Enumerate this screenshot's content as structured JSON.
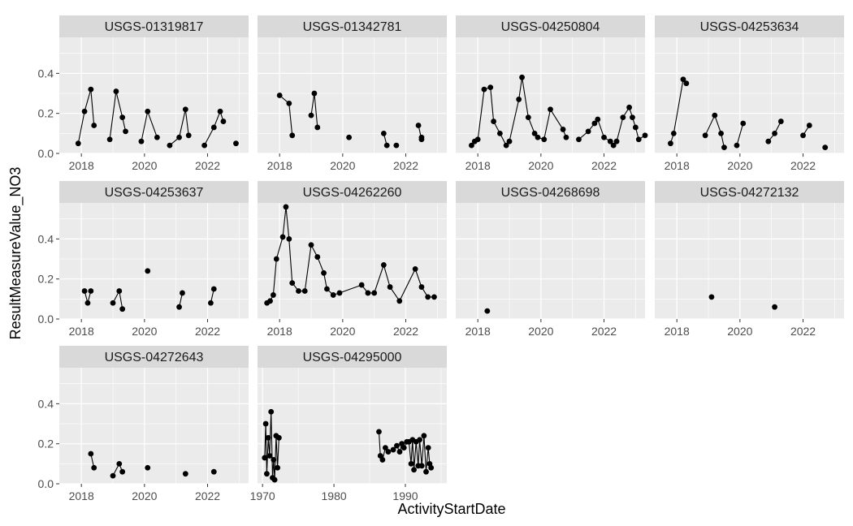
{
  "chart_data": {
    "type": "line",
    "xlabel": "ActivityStartDate",
    "ylabel": "ResultMeasureValue_NO3",
    "ylim": [
      0,
      0.58
    ],
    "yticks": [
      0.0,
      0.2,
      0.4
    ],
    "ytick_labels": [
      "0.0",
      "0.2",
      "0.4"
    ],
    "grid": true,
    "layout": "facet-wrap, 4 columns, fixed y scale",
    "colors": {
      "panel": "#ebebeb",
      "strip": "#d9d9d9",
      "grid": "#ffffff",
      "series": "#000000"
    },
    "facets": [
      {
        "name": "USGS-01319817",
        "xlim": [
          2017.3,
          2023.3
        ],
        "xticks": [
          2018,
          2020,
          2022
        ],
        "groups": [
          [
            [
              2017.9,
              0.05
            ],
            [
              2018.1,
              0.21
            ],
            [
              2018.3,
              0.32
            ],
            [
              2018.4,
              0.14
            ]
          ],
          [
            [
              2018.9,
              0.07
            ],
            [
              2019.1,
              0.31
            ],
            [
              2019.3,
              0.18
            ],
            [
              2019.4,
              0.11
            ]
          ],
          [
            [
              2019.9,
              0.06
            ],
            [
              2020.1,
              0.21
            ],
            [
              2020.4,
              0.08
            ]
          ],
          [
            [
              2020.8,
              0.04
            ],
            [
              2021.1,
              0.08
            ],
            [
              2021.3,
              0.22
            ],
            [
              2021.4,
              0.09
            ]
          ],
          [
            [
              2021.9,
              0.04
            ],
            [
              2022.2,
              0.13
            ],
            [
              2022.4,
              0.21
            ],
            [
              2022.5,
              0.16
            ]
          ],
          [
            [
              2022.9,
              0.05
            ]
          ]
        ]
      },
      {
        "name": "USGS-01342781",
        "xlim": [
          2017.3,
          2023.3
        ],
        "xticks": [
          2018,
          2020,
          2022
        ],
        "groups": [
          [
            [
              2018.0,
              0.29
            ],
            [
              2018.3,
              0.25
            ],
            [
              2018.4,
              0.09
            ]
          ],
          [
            [
              2019.0,
              0.19
            ],
            [
              2019.1,
              0.3
            ],
            [
              2019.2,
              0.13
            ]
          ],
          [
            [
              2020.2,
              0.08
            ]
          ],
          [
            [
              2021.3,
              0.1
            ],
            [
              2021.4,
              0.04
            ]
          ],
          [
            [
              2021.7,
              0.04
            ]
          ],
          [
            [
              2022.4,
              0.14
            ],
            [
              2022.5,
              0.07
            ],
            [
              2022.5,
              0.08
            ]
          ]
        ]
      },
      {
        "name": "USGS-04250804",
        "xlim": [
          2017.3,
          2023.3
        ],
        "xticks": [
          2018,
          2020,
          2022
        ],
        "groups": [
          [
            [
              2017.8,
              0.04
            ],
            [
              2017.9,
              0.06
            ],
            [
              2018.0,
              0.07
            ],
            [
              2018.2,
              0.32
            ],
            [
              2018.4,
              0.33
            ],
            [
              2018.5,
              0.16
            ],
            [
              2018.7,
              0.1
            ],
            [
              2018.9,
              0.04
            ],
            [
              2019.0,
              0.06
            ],
            [
              2019.3,
              0.27
            ],
            [
              2019.4,
              0.38
            ],
            [
              2019.6,
              0.18
            ],
            [
              2019.8,
              0.1
            ],
            [
              2019.9,
              0.08
            ],
            [
              2020.1,
              0.07
            ],
            [
              2020.3,
              0.22
            ],
            [
              2020.7,
              0.12
            ],
            [
              2020.8,
              0.08
            ]
          ],
          [
            [
              2021.2,
              0.07
            ],
            [
              2021.5,
              0.11
            ],
            [
              2021.7,
              0.15
            ],
            [
              2021.8,
              0.17
            ],
            [
              2022.0,
              0.08
            ],
            [
              2022.2,
              0.06
            ],
            [
              2022.3,
              0.04
            ],
            [
              2022.4,
              0.06
            ],
            [
              2022.6,
              0.18
            ],
            [
              2022.8,
              0.23
            ],
            [
              2022.9,
              0.18
            ],
            [
              2023.0,
              0.13
            ],
            [
              2023.1,
              0.07
            ],
            [
              2023.3,
              0.09
            ]
          ]
        ]
      },
      {
        "name": "USGS-04253634",
        "xlim": [
          2017.3,
          2023.3
        ],
        "xticks": [
          2018,
          2020,
          2022
        ],
        "groups": [
          [
            [
              2017.8,
              0.05
            ],
            [
              2017.9,
              0.1
            ],
            [
              2018.2,
              0.37
            ],
            [
              2018.3,
              0.35
            ]
          ],
          [
            [
              2018.9,
              0.09
            ],
            [
              2019.2,
              0.19
            ],
            [
              2019.4,
              0.1
            ],
            [
              2019.5,
              0.03
            ]
          ],
          [
            [
              2019.9,
              0.04
            ],
            [
              2020.1,
              0.15
            ]
          ],
          [
            [
              2020.9,
              0.06
            ],
            [
              2021.1,
              0.1
            ],
            [
              2021.3,
              0.16
            ]
          ],
          [
            [
              2022.0,
              0.09
            ],
            [
              2022.2,
              0.14
            ]
          ],
          [
            [
              2022.7,
              0.03
            ]
          ]
        ]
      },
      {
        "name": "USGS-04253637",
        "xlim": [
          2017.3,
          2023.3
        ],
        "xticks": [
          2018,
          2020,
          2022
        ],
        "groups": [
          [
            [
              2018.1,
              0.14
            ],
            [
              2018.2,
              0.08
            ],
            [
              2018.3,
              0.14
            ]
          ],
          [
            [
              2019.0,
              0.08
            ],
            [
              2019.2,
              0.14
            ],
            [
              2019.3,
              0.05
            ]
          ],
          [
            [
              2020.1,
              0.24
            ]
          ],
          [
            [
              2021.1,
              0.06
            ],
            [
              2021.2,
              0.13
            ]
          ],
          [
            [
              2022.1,
              0.08
            ],
            [
              2022.2,
              0.15
            ]
          ]
        ]
      },
      {
        "name": "USGS-04262260",
        "xlim": [
          2017.3,
          2023.3
        ],
        "xticks": [
          2018,
          2020,
          2022
        ],
        "groups": [
          [
            [
              2017.6,
              0.08
            ],
            [
              2017.7,
              0.09
            ],
            [
              2017.8,
              0.12
            ],
            [
              2017.9,
              0.3
            ],
            [
              2018.1,
              0.41
            ],
            [
              2018.2,
              0.56
            ],
            [
              2018.3,
              0.4
            ],
            [
              2018.4,
              0.18
            ],
            [
              2018.6,
              0.14
            ],
            [
              2018.8,
              0.14
            ],
            [
              2019.0,
              0.37
            ],
            [
              2019.2,
              0.31
            ],
            [
              2019.4,
              0.23
            ],
            [
              2019.5,
              0.15
            ],
            [
              2019.7,
              0.12
            ],
            [
              2019.9,
              0.13
            ],
            [
              2020.6,
              0.17
            ],
            [
              2020.8,
              0.13
            ],
            [
              2021.0,
              0.13
            ],
            [
              2021.3,
              0.27
            ],
            [
              2021.5,
              0.16
            ],
            [
              2021.8,
              0.09
            ],
            [
              2022.3,
              0.25
            ],
            [
              2022.5,
              0.16
            ],
            [
              2022.7,
              0.11
            ],
            [
              2022.9,
              0.11
            ]
          ]
        ]
      },
      {
        "name": "USGS-04268698",
        "xlim": [
          2017.3,
          2023.3
        ],
        "xticks": [
          2018,
          2020,
          2022
        ],
        "groups": [
          [
            [
              2018.3,
              0.04
            ]
          ]
        ]
      },
      {
        "name": "USGS-04272132",
        "xlim": [
          2017.3,
          2023.3
        ],
        "xticks": [
          2018,
          2020,
          2022
        ],
        "groups": [
          [
            [
              2019.1,
              0.11
            ]
          ],
          [
            [
              2021.1,
              0.06
            ]
          ]
        ]
      },
      {
        "name": "USGS-04272643",
        "xlim": [
          2017.3,
          2023.3
        ],
        "xticks": [
          2018,
          2020,
          2022
        ],
        "groups": [
          [
            [
              2018.3,
              0.15
            ],
            [
              2018.4,
              0.08
            ]
          ],
          [
            [
              2019.0,
              0.04
            ],
            [
              2019.2,
              0.1
            ],
            [
              2019.3,
              0.06
            ]
          ],
          [
            [
              2020.1,
              0.08
            ]
          ],
          [
            [
              2021.3,
              0.05
            ]
          ],
          [
            [
              2022.2,
              0.06
            ]
          ]
        ]
      },
      {
        "name": "USGS-04295000",
        "xlim": [
          1969.3,
          1995.8
        ],
        "xticks": [
          1970,
          1980,
          1990
        ],
        "groups": [
          [
            [
              1970.3,
              0.13
            ],
            [
              1970.45,
              0.3
            ],
            [
              1970.6,
              0.05
            ],
            [
              1970.8,
              0.23
            ],
            [
              1971.0,
              0.14
            ],
            [
              1971.2,
              0.36
            ],
            [
              1971.4,
              0.03
            ],
            [
              1971.55,
              0.12
            ],
            [
              1971.7,
              0.02
            ],
            [
              1971.9,
              0.24
            ],
            [
              1972.1,
              0.08
            ],
            [
              1972.3,
              0.23
            ]
          ],
          [
            [
              1986.3,
              0.26
            ],
            [
              1986.5,
              0.14
            ],
            [
              1986.8,
              0.12
            ],
            [
              1987.2,
              0.18
            ],
            [
              1987.6,
              0.16
            ],
            [
              1988.3,
              0.17
            ],
            [
              1988.8,
              0.19
            ],
            [
              1989.2,
              0.16
            ],
            [
              1989.5,
              0.2
            ],
            [
              1989.8,
              0.18
            ],
            [
              1990.2,
              0.21
            ],
            [
              1990.5,
              0.21
            ],
            [
              1990.8,
              0.1
            ],
            [
              1991.0,
              0.22
            ],
            [
              1991.2,
              0.07
            ],
            [
              1991.5,
              0.21
            ],
            [
              1991.8,
              0.09
            ],
            [
              1992.0,
              0.22
            ],
            [
              1992.3,
              0.09
            ],
            [
              1992.6,
              0.24
            ],
            [
              1992.9,
              0.06
            ],
            [
              1993.2,
              0.18
            ],
            [
              1993.4,
              0.1
            ],
            [
              1993.6,
              0.08
            ]
          ]
        ]
      }
    ]
  }
}
